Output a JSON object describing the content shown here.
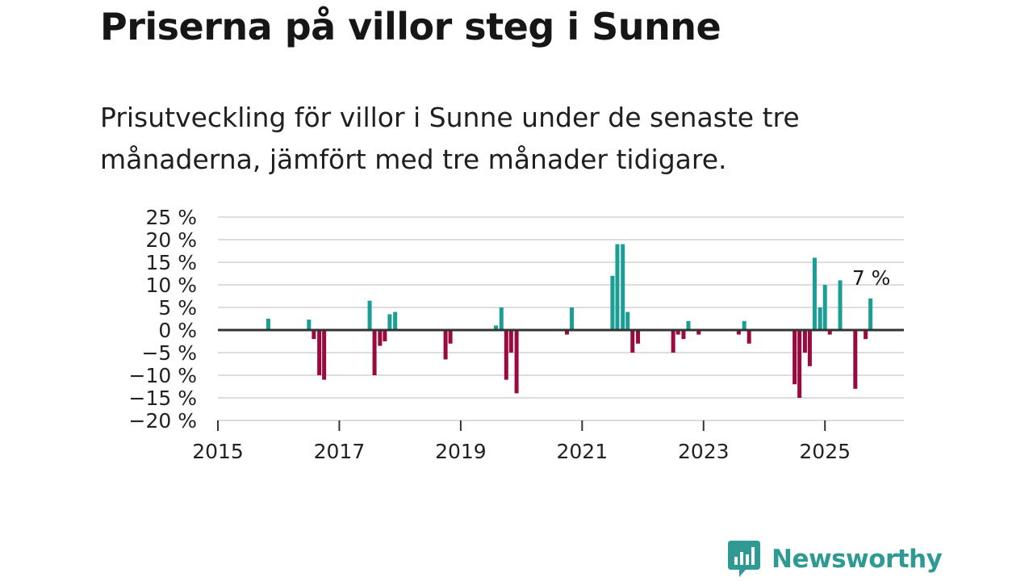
{
  "header": {
    "title": "Priserna på villor steg i Sunne",
    "subtitle": "Prisutveckling för villor i Sunne under de senaste tre månaderna, jämfört med tre månader tidigare."
  },
  "chart_data": {
    "type": "bar",
    "ylabel": "",
    "xlabel": "",
    "ylim": [
      -20,
      25
    ],
    "y_ticks": [
      25,
      20,
      15,
      10,
      5,
      0,
      -5,
      -10,
      -15,
      -20
    ],
    "y_tick_labels": [
      "25 %",
      "20 %",
      "15 %",
      "10 %",
      "5 %",
      "0 %",
      "−5 %",
      "−10 %",
      "−15 %",
      "−20 %"
    ],
    "xlim": [
      2015.0,
      2026.3
    ],
    "x_ticks": [
      2015,
      2017,
      2019,
      2021,
      2023,
      2025
    ],
    "x_tick_labels": [
      "2015",
      "2017",
      "2019",
      "2021",
      "2023",
      "2025"
    ],
    "grid": true,
    "colors": {
      "positive": "#1a9e96",
      "negative": "#9b0a3e",
      "zero_line": "#333333",
      "grid": "#dddddd"
    },
    "annotation": {
      "text": "7 %",
      "x": 2025.75,
      "y": 7
    },
    "series": [
      {
        "name": "Prisutveckling",
        "x": [
          2015.83,
          2016.5,
          2016.58,
          2016.67,
          2016.75,
          2017.5,
          2017.58,
          2017.67,
          2017.75,
          2017.83,
          2017.92,
          2018.75,
          2018.83,
          2019.58,
          2019.67,
          2019.75,
          2019.83,
          2019.92,
          2020.75,
          2020.83,
          2021.5,
          2021.58,
          2021.67,
          2021.75,
          2021.83,
          2021.92,
          2022.5,
          2022.58,
          2022.67,
          2022.75,
          2022.92,
          2023.58,
          2023.67,
          2023.75,
          2024.5,
          2024.58,
          2024.67,
          2024.75,
          2024.83,
          2024.92,
          2025.0,
          2025.08,
          2025.25,
          2025.5,
          2025.67,
          2025.75
        ],
        "values": [
          2.5,
          2.3,
          -2,
          -10,
          -11,
          6.5,
          -10,
          -3.5,
          -2.5,
          3.5,
          4,
          -6.5,
          -3,
          1,
          5,
          -11,
          -5,
          -14,
          -1,
          5,
          12,
          19,
          19,
          4,
          -5,
          -3,
          -5,
          -1,
          -2,
          2,
          -1,
          -1,
          2,
          -3,
          -12,
          -15,
          -5,
          -8,
          16,
          5,
          10,
          -1,
          11,
          -13,
          -2,
          7
        ]
      }
    ]
  },
  "brand": {
    "logo_text": "Newsworthy",
    "color": "#2f9a94"
  }
}
